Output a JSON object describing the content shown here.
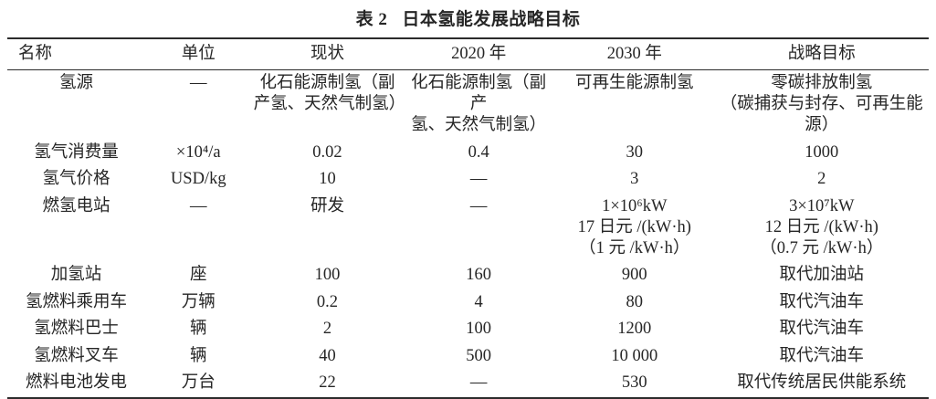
{
  "page": {
    "background_color": "#ffffff",
    "text_color": "#262626",
    "rule_color": "#2b2b2b"
  },
  "title": {
    "tag": "表 2",
    "text": "日本氢能发展战略目标"
  },
  "table": {
    "columns": [
      "名称",
      "单位",
      "现状",
      "2020 年",
      "2030 年",
      "战略目标"
    ],
    "column_keys": [
      "name",
      "unit",
      "current",
      "y2020",
      "y2030",
      "goal"
    ],
    "rows": [
      [
        "氢源",
        "—",
        "化石能源制氢（副\n产氢、天然气制氢）",
        "化石能源制氢（副产\n氢、天然气制氢）",
        "可再生能源制氢",
        "零碳排放制氢\n（碳捕获与封存、可再生能源）"
      ],
      [
        "氢气消费量",
        "×10⁴/a",
        "0.02",
        "0.4",
        "30",
        "1000"
      ],
      [
        "氢气价格",
        "USD/kg",
        "10",
        "—",
        "3",
        "2"
      ],
      [
        "燃氢电站",
        "—",
        "研发",
        "—",
        "1×10⁶kW\n17 日元 /(kW·h)\n（1 元 /kW·h）",
        "3×10⁷kW\n12 日元 /(kW·h)\n（0.7 元 /kW·h）"
      ],
      [
        "加氢站",
        "座",
        "100",
        "160",
        "900",
        "取代加油站"
      ],
      [
        "氢燃料乘用车",
        "万辆",
        "0.2",
        "4",
        "80",
        "取代汽油车"
      ],
      [
        "氢燃料巴士",
        "辆",
        "2",
        "100",
        "1200",
        "取代汽油车"
      ],
      [
        "氢燃料叉车",
        "辆",
        "40",
        "500",
        "10 000",
        "取代汽油车"
      ],
      [
        "燃料电池发电",
        "万台",
        "22",
        "—",
        "530",
        "取代传统居民供能系统"
      ]
    ]
  }
}
